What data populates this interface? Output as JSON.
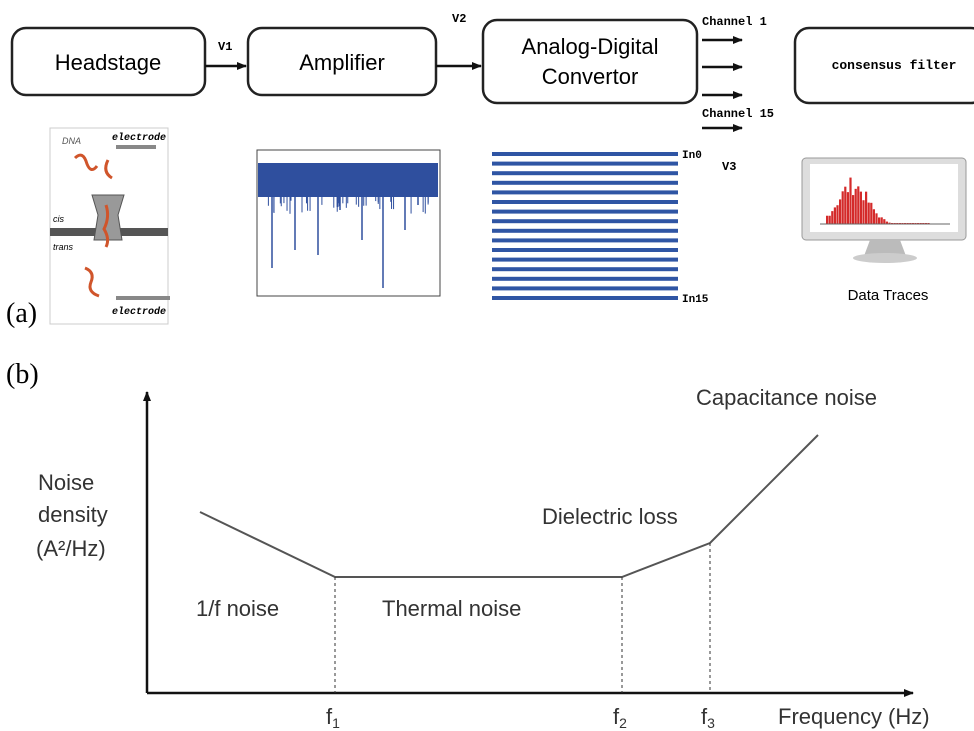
{
  "pipeline": {
    "blocks": [
      {
        "label": "Headstage"
      },
      {
        "label": "Amplifier"
      },
      {
        "label": [
          "Analog-Digital",
          "Convertor"
        ]
      },
      {
        "label": "consensus filter"
      }
    ],
    "signals": [
      "V1",
      "V2",
      "V3"
    ],
    "channels": [
      "Channel 1",
      "Channel 15"
    ],
    "panel_label": "(a)"
  },
  "illustrations": {
    "nanopore": {
      "dna": "DNA",
      "top_electrode": "electrode",
      "cis": "cis",
      "trans": "trans",
      "bottom_electrode": "electrode"
    },
    "channel_traces": {
      "first": "In0",
      "last": "In15"
    },
    "monitor_caption": "Data Traces"
  },
  "noise_plot": {
    "panel_label": "(b)",
    "y_label": [
      "Noise",
      "density",
      "(A²/Hz)"
    ],
    "x_label": "Frequency (Hz)",
    "regions": [
      "1/f noise",
      "Thermal noise",
      "Dielectric loss",
      "Capacitance noise"
    ],
    "frequencies": [
      {
        "base": "f",
        "sub": "1"
      },
      {
        "base": "f",
        "sub": "2"
      },
      {
        "base": "f",
        "sub": "3"
      }
    ]
  }
}
